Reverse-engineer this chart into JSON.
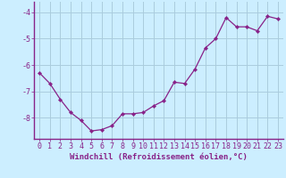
{
  "x": [
    0,
    1,
    2,
    3,
    4,
    5,
    6,
    7,
    8,
    9,
    10,
    11,
    12,
    13,
    14,
    15,
    16,
    17,
    18,
    19,
    20,
    21,
    22,
    23
  ],
  "y": [
    -6.3,
    -6.7,
    -7.3,
    -7.8,
    -8.1,
    -8.5,
    -8.45,
    -8.3,
    -7.85,
    -7.85,
    -7.8,
    -7.55,
    -7.35,
    -6.65,
    -6.7,
    -6.15,
    -5.35,
    -5.0,
    -4.2,
    -4.55,
    -4.55,
    -4.7,
    -4.15,
    -4.25
  ],
  "line_color": "#882288",
  "marker": "D",
  "marker_size": 2.2,
  "bg_color": "#cceeff",
  "grid_color": "#aaccdd",
  "xlabel": "Windchill (Refroidissement éolien,°C)",
  "xlabel_fontsize": 6.5,
  "tick_fontsize": 6,
  "ylim": [
    -8.8,
    -3.6
  ],
  "yticks": [
    -8,
    -7,
    -6,
    -5,
    -4
  ],
  "xlim": [
    -0.5,
    23.5
  ],
  "xticks": [
    0,
    1,
    2,
    3,
    4,
    5,
    6,
    7,
    8,
    9,
    10,
    11,
    12,
    13,
    14,
    15,
    16,
    17,
    18,
    19,
    20,
    21,
    22,
    23
  ],
  "spine_color": "#666688"
}
